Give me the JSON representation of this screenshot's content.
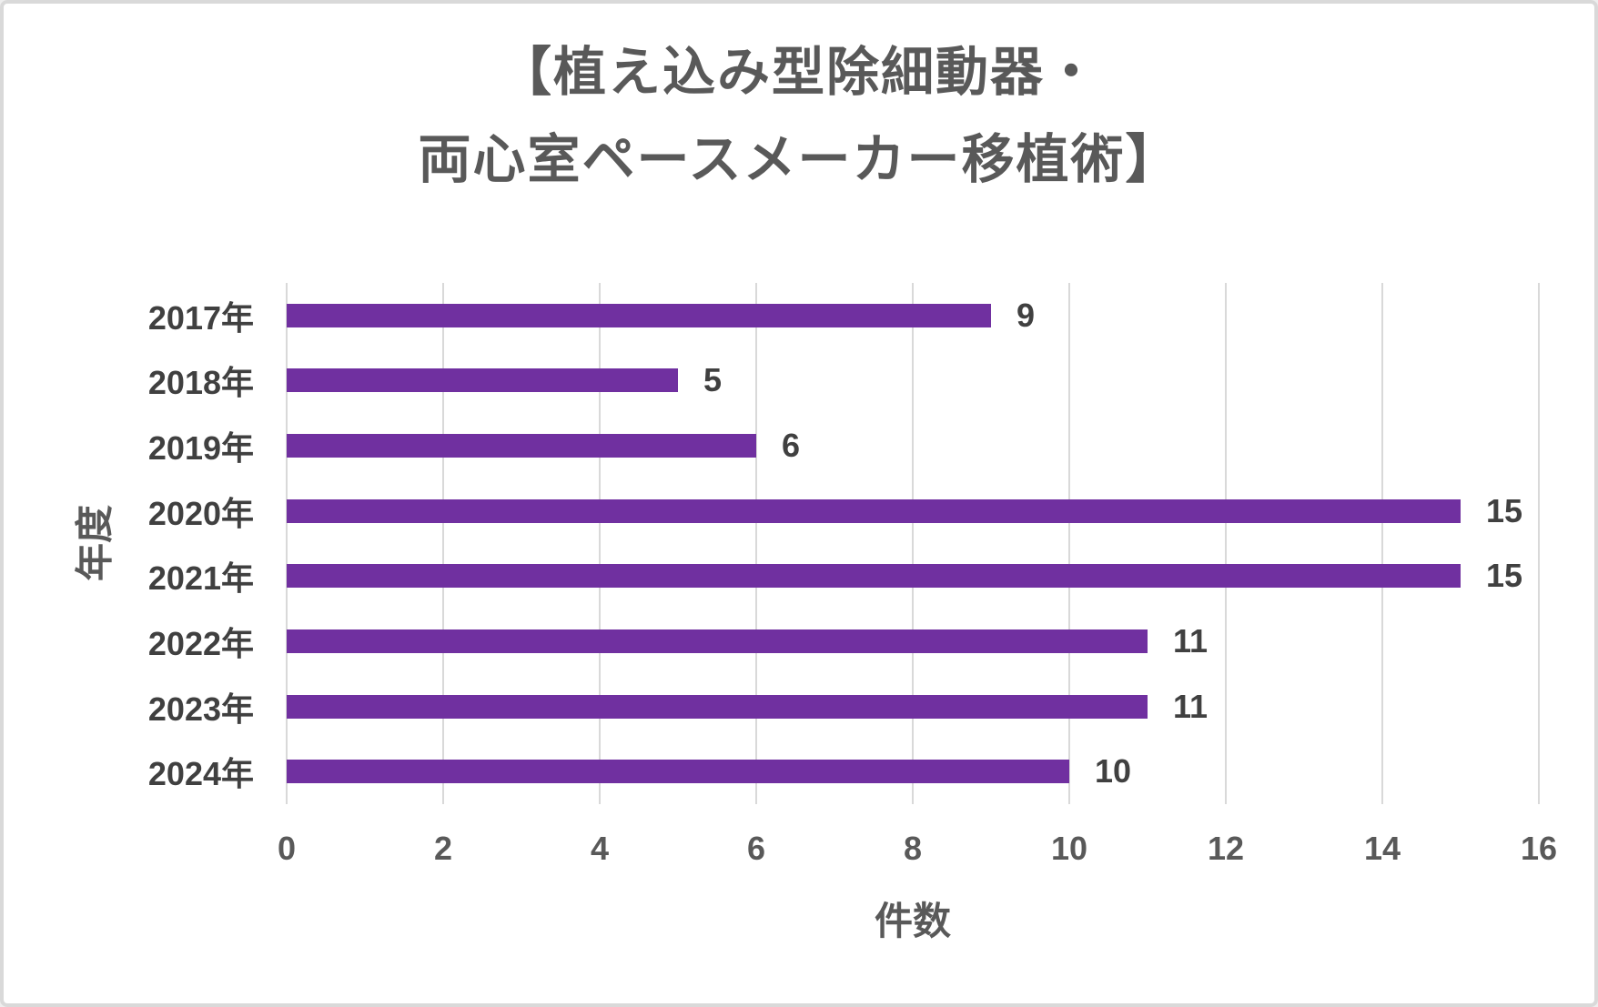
{
  "chart_data": {
    "type": "bar",
    "orientation": "horizontal",
    "title": "【植え込み型除細動器・両心室ペースメーカー移植術】",
    "title_lines": [
      "【植え込み型除細動器・",
      "両心室ペースメーカー移植術】"
    ],
    "categories": [
      "2017年",
      "2018年",
      "2019年",
      "2020年",
      "2021年",
      "2022年",
      "2023年",
      "2024年"
    ],
    "values": [
      9,
      5,
      6,
      15,
      15,
      11,
      11,
      10
    ],
    "data_labels": [
      "9",
      "5",
      "6",
      "15",
      "15",
      "11",
      "11",
      "10"
    ],
    "xlabel": "件数",
    "ylabel": "年度",
    "xlim": [
      0,
      16
    ],
    "xticks": [
      0,
      2,
      4,
      6,
      8,
      10,
      12,
      14,
      16
    ],
    "grid": true,
    "legend": "none",
    "colors": {
      "bar": "#7030a0",
      "gridline": "#d9d9d9",
      "title_text": "#595959",
      "axis_text": "#595959",
      "label_text": "#404040",
      "background": "#ffffff",
      "border": "#d9d9d9"
    }
  }
}
